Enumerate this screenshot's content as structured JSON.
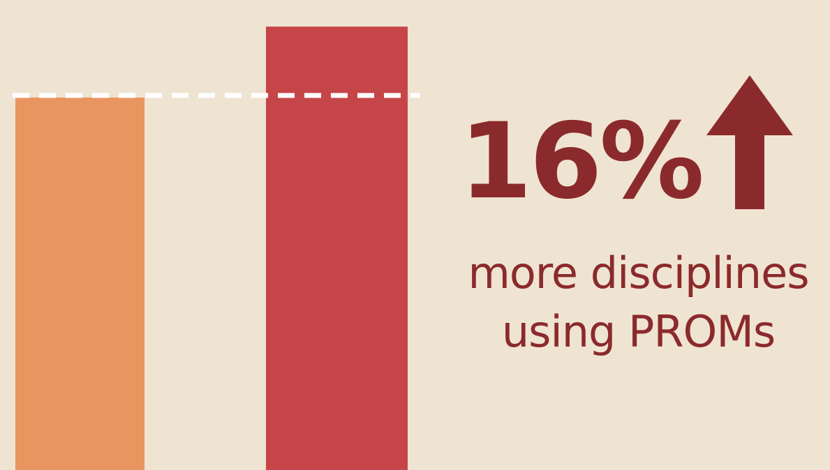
{
  "chart_data": {
    "type": "bar",
    "categories": [
      "",
      ""
    ],
    "values": [
      84,
      100
    ],
    "ylim": [
      0,
      106
    ],
    "reference_line": {
      "value": 84,
      "style": "dashed"
    },
    "colors": [
      "#e8955f",
      "#c64548"
    ],
    "grid": false,
    "legend": "none"
  },
  "stat": {
    "value": "16%",
    "direction_icon": "up-arrow-icon",
    "caption_line1": "more disciplines",
    "caption_line2": "using PROMs"
  },
  "colors": {
    "background": "#efe4d1",
    "accent": "#8b2a2c",
    "reference_line": "#ffffff"
  }
}
